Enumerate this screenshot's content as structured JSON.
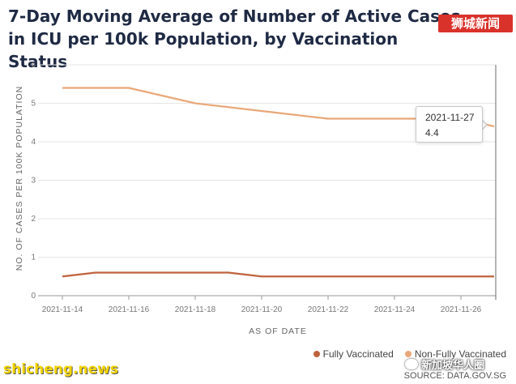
{
  "chart_data": {
    "type": "line",
    "title": "7-Day Moving Average of Number of Active Cases in ICU per 100k Population, by Vaccination Status",
    "xlabel": "AS OF DATE",
    "ylabel": "NO. OF CASES PER 100K POPULATION",
    "ylim": [
      0,
      6
    ],
    "y_ticks": [
      "0",
      "1",
      "2",
      "3",
      "4",
      "5",
      "6"
    ],
    "x": [
      "2021-11-14",
      "2021-11-15",
      "2021-11-16",
      "2021-11-17",
      "2021-11-18",
      "2021-11-19",
      "2021-11-20",
      "2021-11-21",
      "2021-11-22",
      "2021-11-23",
      "2021-11-24",
      "2021-11-25",
      "2021-11-26",
      "2021-11-27"
    ],
    "x_ticks": [
      "2021-11-14",
      "2021-11-16",
      "2021-11-18",
      "2021-11-20",
      "2021-11-22",
      "2021-11-24",
      "2021-11-26"
    ],
    "series": [
      {
        "name": "Fully Vaccinated",
        "color": "#c0623d",
        "values": [
          0.5,
          0.6,
          0.6,
          0.6,
          0.6,
          0.6,
          0.5,
          0.5,
          0.5,
          0.5,
          0.5,
          0.5,
          0.5,
          0.5
        ]
      },
      {
        "name": "Non-Fully Vaccinated",
        "color": "#e9a87a",
        "values": [
          5.4,
          5.4,
          5.4,
          5.2,
          5.0,
          4.9,
          4.8,
          4.7,
          4.6,
          4.6,
          4.6,
          4.6,
          4.6,
          4.4
        ]
      }
    ],
    "grid": "horizontal",
    "legend_position": "bottom-right",
    "tooltip": {
      "date": "2021-11-27",
      "value": "4.4"
    }
  },
  "source": "SOURCE: DATA.GOV.SG",
  "watermarks": {
    "top_right": "狮城新闻",
    "bottom_left": "shicheng.news",
    "bottom_right": "新加坡华人圈"
  }
}
